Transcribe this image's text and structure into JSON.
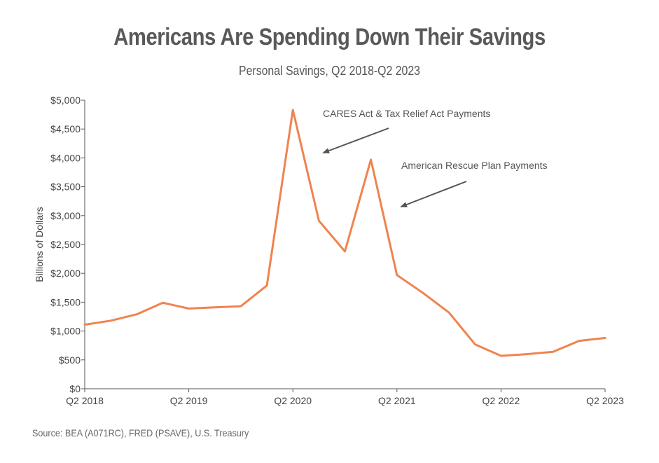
{
  "chart_data": {
    "type": "line",
    "title": "Americans Are Spending Down Their Savings",
    "subtitle": "Personal Savings, Q2 2018-Q2 2023",
    "ylabel": "Billions of Dollars",
    "xlabel": "",
    "ylim": [
      0,
      5000
    ],
    "yticks": [
      0,
      500,
      1000,
      1500,
      2000,
      2500,
      3000,
      3500,
      4000,
      4500,
      5000
    ],
    "ytick_labels": [
      "$0",
      "$500",
      "$1,000",
      "$1,500",
      "$2,000",
      "$2,500",
      "$3,000",
      "$3,500",
      "$4,000",
      "$4,500",
      "$5,000"
    ],
    "xtick_labels": [
      "Q2 2018",
      "Q2 2019",
      "Q2 2020",
      "Q2 2021",
      "Q2 2022",
      "Q2 2023"
    ],
    "xtick_indices": [
      0,
      4,
      8,
      12,
      16,
      20
    ],
    "categories": [
      "Q2 2018",
      "Q3 2018",
      "Q4 2018",
      "Q1 2019",
      "Q2 2019",
      "Q3 2019",
      "Q4 2019",
      "Q1 2020",
      "Q2 2020",
      "Q3 2020",
      "Q4 2020",
      "Q1 2021",
      "Q2 2021",
      "Q3 2021",
      "Q4 2021",
      "Q1 2022",
      "Q2 2022",
      "Q3 2022",
      "Q4 2022",
      "Q1 2023",
      "Q2 2023"
    ],
    "series": [
      {
        "name": "Personal Savings",
        "color": "#f0834f",
        "values": [
          1110,
          1180,
          1290,
          1490,
          1390,
          1410,
          1430,
          1790,
          4830,
          2910,
          2380,
          3970,
          1970,
          1660,
          1320,
          770,
          570,
          600,
          640,
          830,
          880
        ]
      }
    ],
    "annotations": [
      {
        "text": "CARES Act & Tax Relief Act Payments",
        "arrow_color": "#555555"
      },
      {
        "text": "American Rescue Plan Payments",
        "arrow_color": "#555555"
      }
    ],
    "grid": false
  },
  "source": "Source: BEA (A071RC), FRED (PSAVE), U.S. Treasury"
}
